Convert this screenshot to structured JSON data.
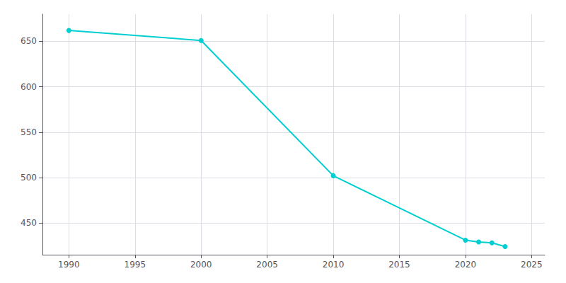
{
  "chart_data": {
    "type": "line",
    "x": [
      1990,
      2000,
      2010,
      2020,
      2021,
      2022,
      2023
    ],
    "values": [
      662,
      651,
      502,
      431,
      429,
      428,
      424
    ],
    "color": "#00CED1",
    "marker": "circle",
    "xlim": [
      1988,
      2026
    ],
    "ylim": [
      415,
      680
    ],
    "xticks": [
      1990,
      1995,
      2000,
      2005,
      2010,
      2015,
      2020,
      2025
    ],
    "yticks": [
      450,
      500,
      550,
      600,
      650
    ],
    "grid": true
  }
}
